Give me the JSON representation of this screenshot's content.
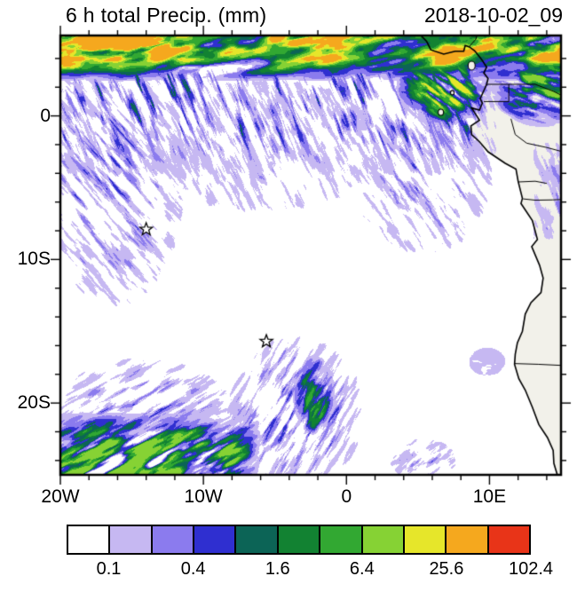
{
  "chart_data": {
    "type": "heatmap",
    "title": "6 h total Precip. (mm)",
    "datetime_label": "2018-10-02_09",
    "projection": {
      "lon_min": -20,
      "lon_max": 15,
      "lat_min": -25,
      "lat_max": 5.6
    },
    "x_ticks": [
      {
        "label": "20W",
        "lon": -20
      },
      {
        "label": "10W",
        "lon": -10
      },
      {
        "label": "0",
        "lon": 0
      },
      {
        "label": "10E",
        "lon": 10
      }
    ],
    "y_ticks": [
      {
        "label": "0",
        "lat": 0
      },
      {
        "label": "10S",
        "lat": -10
      },
      {
        "label": "20S",
        "lat": -20
      }
    ],
    "minor_tick_deg": 2,
    "ocean_color": "#ffffff",
    "land_color": "#f2f1ea",
    "colorbar": {
      "colors": [
        "#ffffff",
        "#c6b8f2",
        "#8b7bee",
        "#2f2fd0",
        "#0c6456",
        "#128232",
        "#32a832",
        "#86d234",
        "#e6e62a",
        "#f5a81e",
        "#e83418"
      ],
      "tick_labels": [
        "0.1",
        "0.4",
        "1.6",
        "6.4",
        "25.6",
        "102.4"
      ],
      "tick_positions": [
        1,
        3,
        5,
        7,
        9,
        11
      ]
    },
    "markers": [
      {
        "lon": -14.0,
        "lat": -7.9
      },
      {
        "lon": -5.6,
        "lat": -15.7
      }
    ],
    "coastline": [
      [
        5.2,
        5.6
      ],
      [
        5.6,
        5.2
      ],
      [
        5.9,
        4.6
      ],
      [
        6.8,
        4.3
      ],
      [
        7.6,
        4.5
      ],
      [
        8.2,
        4.5
      ],
      [
        8.3,
        4.9
      ],
      [
        8.6,
        4.8
      ],
      [
        8.95,
        4.55
      ],
      [
        9.4,
        4.0
      ],
      [
        9.8,
        3.4
      ],
      [
        9.6,
        3.0
      ],
      [
        9.9,
        2.6
      ],
      [
        9.8,
        2.2
      ],
      [
        9.35,
        1.2
      ],
      [
        9.5,
        0.9
      ],
      [
        9.3,
        0.4
      ],
      [
        8.75,
        0.55
      ],
      [
        9.3,
        -0.3
      ],
      [
        8.7,
        -0.7
      ],
      [
        8.75,
        -1.3
      ],
      [
        9.3,
        -1.8
      ],
      [
        9.9,
        -2.5
      ],
      [
        11.1,
        -3.3
      ],
      [
        11.85,
        -3.7
      ],
      [
        12.0,
        -4.55
      ],
      [
        12.3,
        -5.75
      ],
      [
        12.2,
        -6.1
      ],
      [
        13.0,
        -7.3
      ],
      [
        13.35,
        -8.6
      ],
      [
        12.95,
        -9.1
      ],
      [
        13.5,
        -10.4
      ],
      [
        13.75,
        -11.3
      ],
      [
        13.6,
        -12.3
      ],
      [
        12.9,
        -13.0
      ],
      [
        12.5,
        -13.8
      ],
      [
        12.3,
        -15.0
      ],
      [
        11.95,
        -15.8
      ],
      [
        11.8,
        -16.6
      ],
      [
        11.75,
        -17.3
      ],
      [
        12.05,
        -18.3
      ],
      [
        12.5,
        -19.1
      ],
      [
        13.0,
        -20.3
      ],
      [
        13.45,
        -21.5
      ],
      [
        14.05,
        -22.4
      ],
      [
        14.45,
        -23.3
      ],
      [
        14.5,
        -24.2
      ],
      [
        14.8,
        -25.2
      ]
    ],
    "islands": [
      {
        "name": "bioko",
        "c": [
          8.75,
          3.5
        ],
        "r": [
          4,
          5
        ]
      },
      {
        "name": "principe",
        "c": [
          7.4,
          1.62
        ],
        "r": [
          2,
          2.5
        ]
      },
      {
        "name": "sao-tome",
        "c": [
          6.6,
          0.25
        ],
        "r": [
          3,
          3.5
        ]
      }
    ],
    "borders": [
      [
        [
          8.6,
          4.85
        ],
        [
          9.05,
          5.35
        ],
        [
          9.2,
          5.9
        ]
      ],
      [
        [
          9.8,
          2.2
        ],
        [
          13.2,
          2.2
        ],
        [
          14.5,
          1.7
        ],
        [
          15.5,
          1.2
        ]
      ],
      [
        [
          9.6,
          1.0
        ],
        [
          11.35,
          1.0
        ],
        [
          11.35,
          2.2
        ]
      ],
      [
        [
          11.5,
          -0.2
        ],
        [
          11.8,
          -1.3
        ],
        [
          12.6,
          -1.9
        ],
        [
          14.0,
          -2.2
        ],
        [
          15.5,
          -2.6
        ]
      ],
      [
        [
          12.0,
          -4.6
        ],
        [
          13.2,
          -4.55
        ],
        [
          14.0,
          -4.7
        ]
      ],
      [
        [
          12.35,
          -5.78
        ],
        [
          13.2,
          -5.87
        ],
        [
          14.4,
          -5.85
        ],
        [
          15.5,
          -5.8
        ]
      ],
      [
        [
          11.75,
          -17.25
        ],
        [
          13.4,
          -17.3
        ],
        [
          15.5,
          -17.4
        ]
      ]
    ],
    "precip_regions": [
      {
        "name": "itcz-core",
        "type": "band",
        "lon": [
          -20.5,
          15.5
        ],
        "lat": [
          2.4,
          5.9
        ],
        "f": [
          0.3,
          0.3,
          0.3,
          1.6
        ],
        "angle": -12,
        "su": 60,
        "sv": 16,
        "bias": 0.28,
        "gain": 2.2,
        "maxlev": 9,
        "seed": 11
      },
      {
        "name": "itcz-fringe",
        "type": "band",
        "lon": [
          -20.5,
          10.5
        ],
        "lat": [
          -4.2,
          3.4
        ],
        "f": [
          1.0,
          2.0,
          0.5,
          3.2
        ],
        "angle": 68,
        "su": 34,
        "sv": 5,
        "bias": 0.5,
        "gain": 2.6,
        "maxlev": 4,
        "seed": 22
      },
      {
        "name": "topleft-intense",
        "type": "blob",
        "c": [
          -15.5,
          5.4
        ],
        "r": [
          5.5,
          2.2
        ],
        "angle": -10,
        "su": 40,
        "sv": 10,
        "bias": 0.24,
        "gain": 3.0,
        "maxlev": 9,
        "seed": 166
      },
      {
        "name": "guinea-plume",
        "type": "blob",
        "c": [
          6.8,
          2.1
        ],
        "r": [
          3.4,
          2.8
        ],
        "angle": 38,
        "su": 34,
        "sv": 9,
        "bias": 0.3,
        "gain": 2.8,
        "maxlev": 8,
        "seed": 33
      },
      {
        "name": "ne-land-green",
        "type": "blob",
        "c": [
          13.6,
          2.6
        ],
        "r": [
          3.8,
          3.4
        ],
        "angle": 15,
        "su": 34,
        "sv": 10,
        "bias": 0.3,
        "gain": 3.0,
        "maxlev": 7,
        "seed": 44
      },
      {
        "name": "left-streaks",
        "type": "blob",
        "c": [
          -16.3,
          -4.0
        ],
        "r": [
          5.2,
          9.5
        ],
        "angle": 50,
        "su": 28,
        "sv": 4.5,
        "bias": 0.52,
        "gain": 2.8,
        "maxlev": 3,
        "seed": 55
      },
      {
        "name": "mid-speckles",
        "type": "blob",
        "c": [
          -6.0,
          -2.0
        ],
        "r": [
          9.0,
          4.8
        ],
        "angle": 62,
        "su": 24,
        "sv": 4,
        "bias": 0.58,
        "gain": 2.8,
        "maxlev": 2,
        "seed": 66
      },
      {
        "name": "right-coast-specks",
        "type": "blob",
        "c": [
          5.3,
          -4.2
        ],
        "r": [
          5.0,
          5.6
        ],
        "angle": 55,
        "su": 26,
        "sv": 4.5,
        "bias": 0.54,
        "gain": 2.7,
        "maxlev": 3,
        "seed": 77
      },
      {
        "name": "east-edge-lavender",
        "type": "band",
        "lon": [
          13.0,
          15.5
        ],
        "lat": [
          -8.6,
          -1.8
        ],
        "f": [
          0.6,
          0.6,
          0.8,
          0.8
        ],
        "angle": 70,
        "su": 22,
        "sv": 5.5,
        "bias": 0.5,
        "gain": 2.3,
        "maxlev": 2,
        "seed": 88
      },
      {
        "name": "sw-band",
        "type": "band",
        "lon": [
          -20.5,
          -6.0
        ],
        "lat": [
          -25.6,
          -20.6
        ],
        "f": [
          0.3,
          2.2,
          2.2,
          0.3
        ],
        "angle": -28,
        "su": 44,
        "sv": 10,
        "bias": 0.3,
        "gain": 3.0,
        "maxlev": 7,
        "seed": 99
      },
      {
        "name": "sw-fringe",
        "type": "blob",
        "c": [
          -14.5,
          -20.0
        ],
        "r": [
          6.5,
          3.2
        ],
        "angle": -30,
        "su": 26,
        "sv": 4.5,
        "bias": 0.52,
        "gain": 2.6,
        "maxlev": 3,
        "seed": 111
      },
      {
        "name": "s-central-streaks",
        "type": "blob",
        "c": [
          -3.6,
          -20.6
        ],
        "r": [
          5.0,
          5.4
        ],
        "angle": -58,
        "su": 28,
        "sv": 4.5,
        "bias": 0.5,
        "gain": 2.7,
        "maxlev": 4,
        "seed": 122
      },
      {
        "name": "s-central-core",
        "type": "blob",
        "c": [
          -2.3,
          -19.4
        ],
        "r": [
          1.5,
          2.8
        ],
        "angle": -62,
        "su": 30,
        "sv": 7,
        "bias": 0.28,
        "gain": 2.8,
        "maxlev": 6,
        "seed": 133
      },
      {
        "name": "angola-coast-patch",
        "type": "blob",
        "c": [
          9.8,
          -17.1
        ],
        "r": [
          1.3,
          1.0
        ],
        "angle": 0,
        "su": 16,
        "sv": 9,
        "bias": 0.22,
        "gain": 2.2,
        "maxlev": 1,
        "seed": 144
      },
      {
        "name": "se-coast-specks",
        "type": "blob",
        "c": [
          5.3,
          -23.9
        ],
        "r": [
          2.4,
          1.5
        ],
        "angle": -40,
        "su": 20,
        "sv": 5,
        "bias": 0.52,
        "gain": 2.6,
        "maxlev": 3,
        "seed": 155
      }
    ]
  }
}
